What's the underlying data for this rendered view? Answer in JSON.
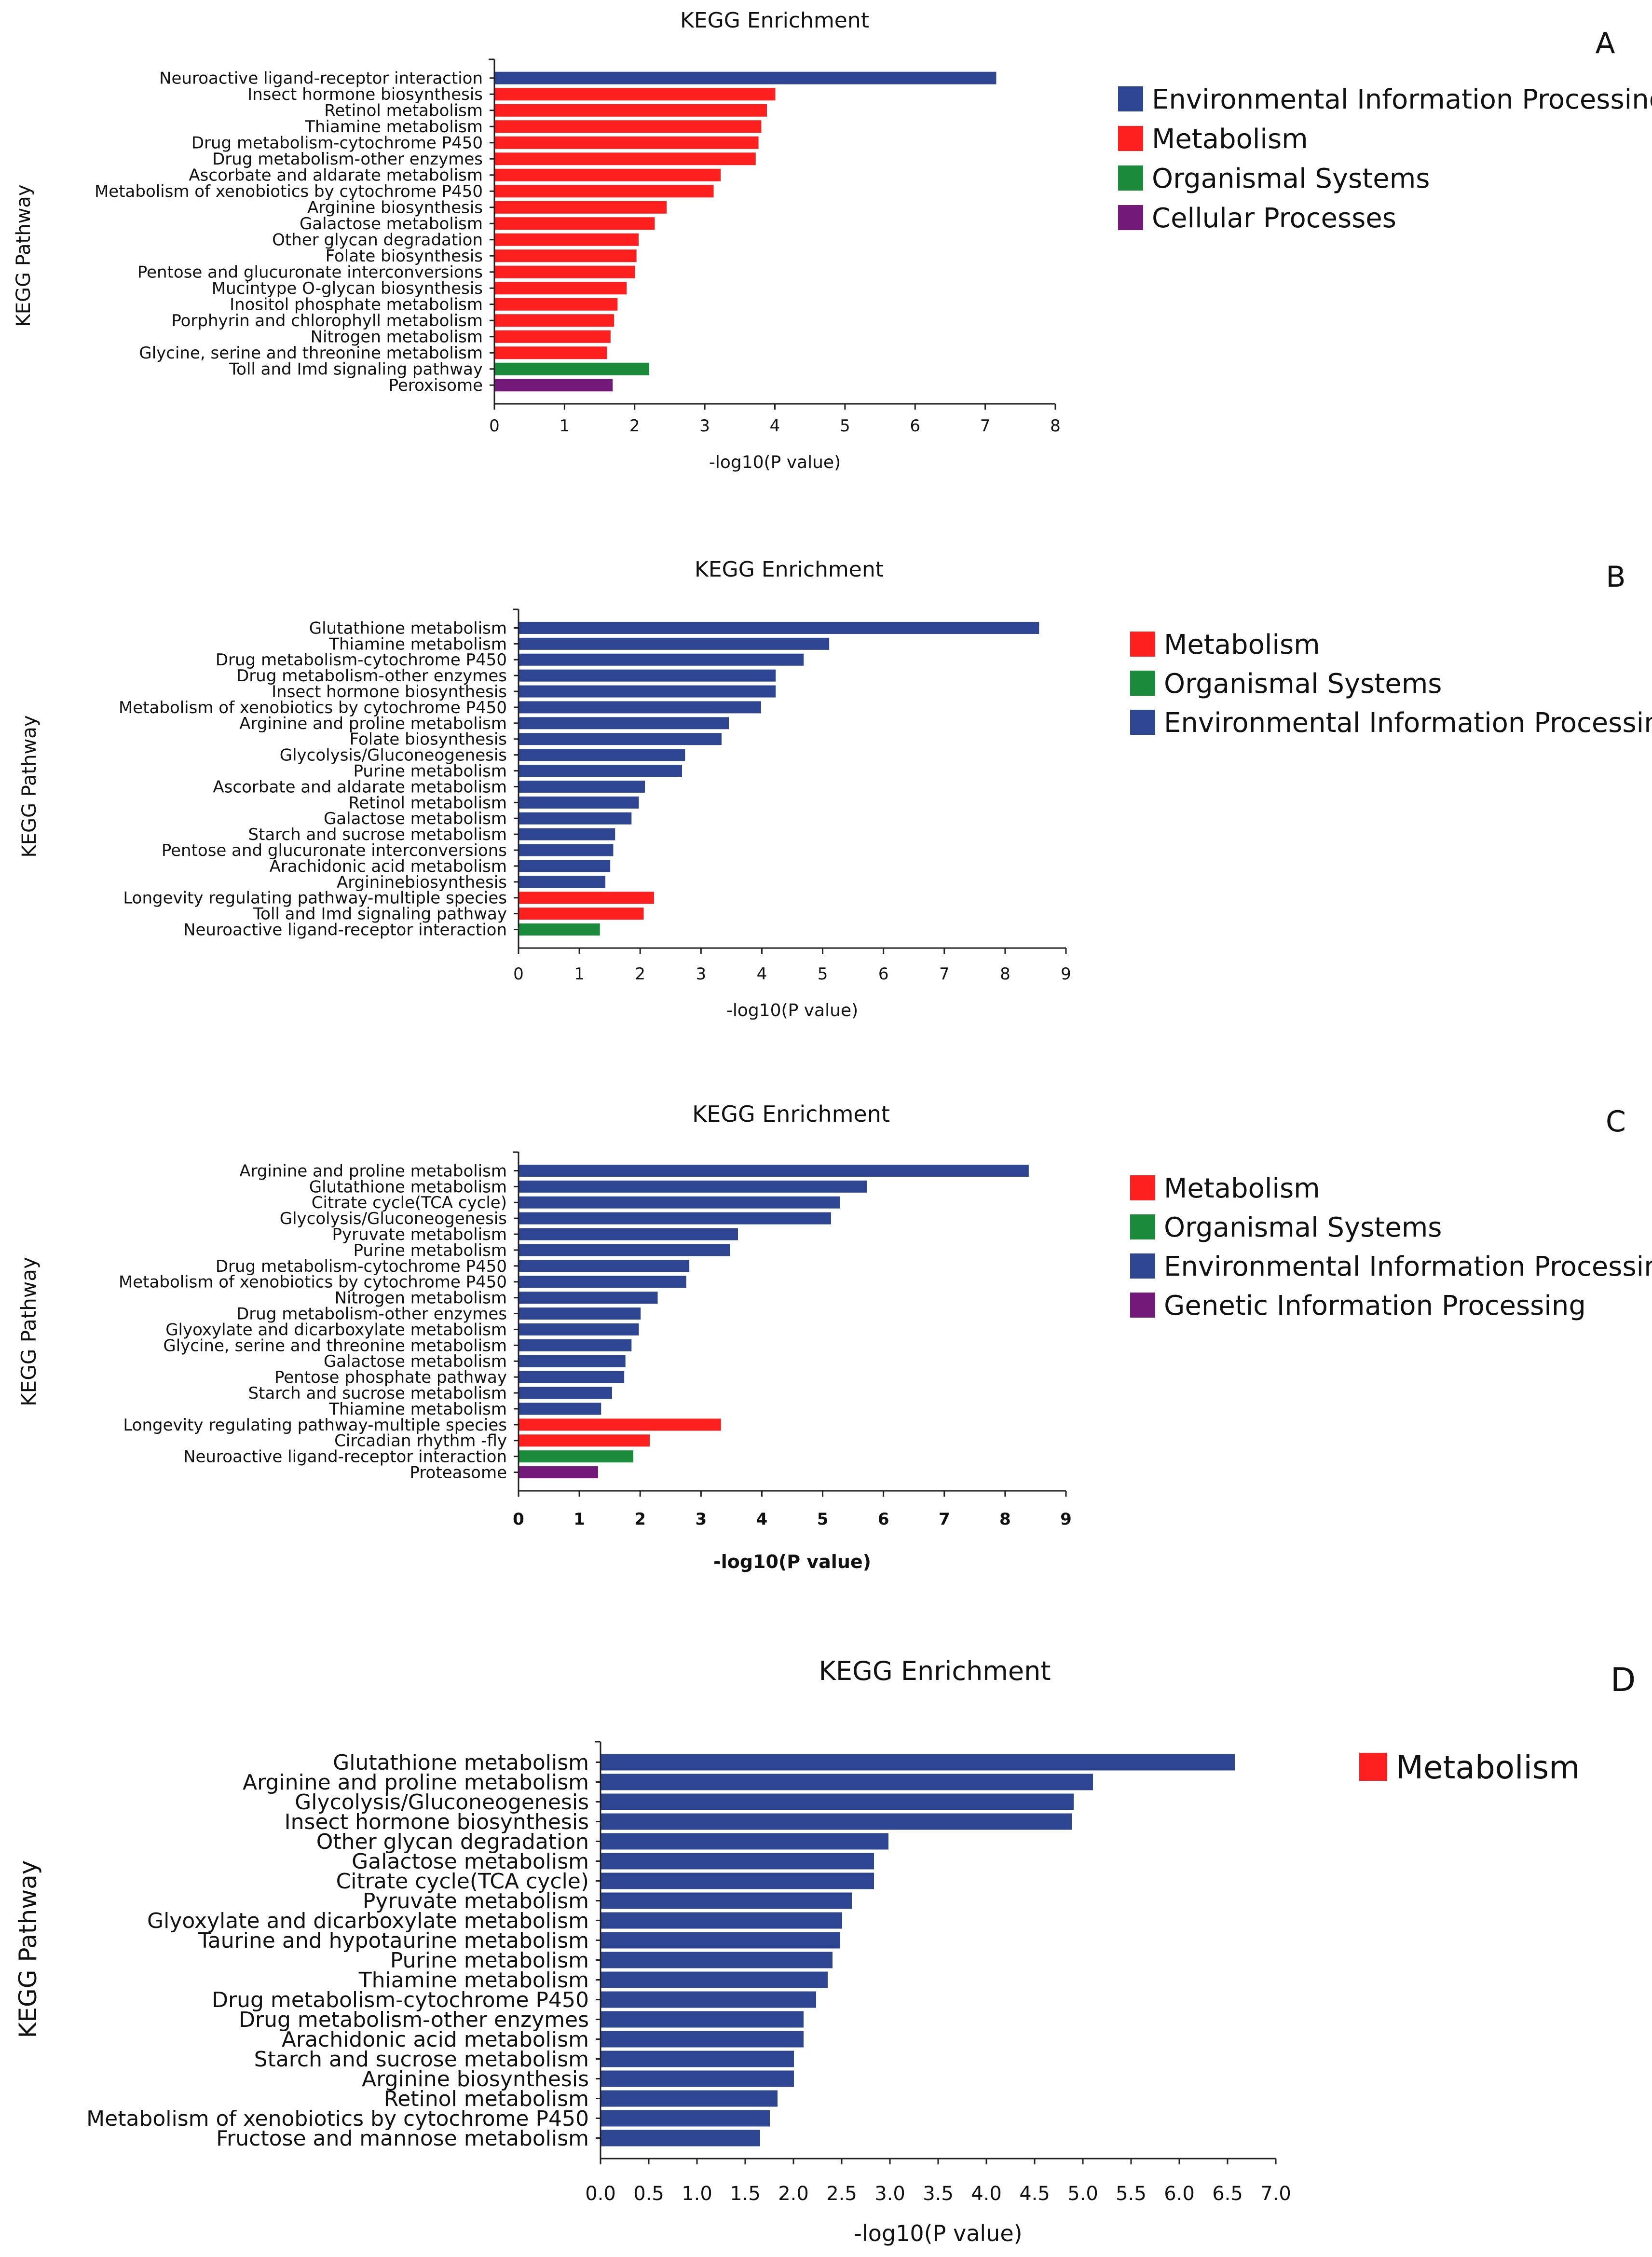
{
  "colors": {
    "Environmental Information Processing": "#2e4592",
    "Metabolism": "#ff1f1f",
    "Organismal Systems": "#1a8c3c",
    "Cellular Processes": "#741a7a",
    "Genetic Information Processing": "#741a7a"
  },
  "chart_data": [
    {
      "type": "bar",
      "orientation": "horizontal",
      "panel": "A",
      "title": "KEGG Enrichment",
      "xlabel": "-log10(P value)",
      "ylabel": "KEGG Pathway",
      "xlim": [
        0,
        8
      ],
      "xticks": [
        "0",
        "1",
        "2",
        "3",
        "4",
        "5",
        "6",
        "7",
        "8"
      ],
      "legend": [
        "Environmental Information Processing",
        "Metabolism",
        "Organismal Systems",
        "Cellular Processes"
      ],
      "categories": [
        "Neuroactive ligand-receptor interaction",
        "Insect hormone biosynthesis",
        "Retinol metabolism",
        "Thiamine metabolism",
        "Drug metabolism-cytochrome P450",
        "Drug metabolism-other enzymes",
        "Ascorbate and aldarate metabolism",
        "Metabolism of xenobiotics by cytochrome P450",
        "Arginine biosynthesis",
        "Galactose metabolism",
        "Other glycan degradation",
        "Folate biosynthesis",
        "Pentose and glucuronate interconversions",
        "Mucintype O-glycan biosynthesis",
        "Inositol phosphate metabolism",
        "Porphyrin and chlorophyll metabolism",
        "Nitrogen metabolism",
        "Glycine, serine and threonine metabolism",
        "Toll and Imd signaling pathway",
        "Peroxisome"
      ],
      "values": [
        7.15,
        4.0,
        3.88,
        3.8,
        3.76,
        3.72,
        3.22,
        3.12,
        2.45,
        2.28,
        2.05,
        2.02,
        2.0,
        1.88,
        1.75,
        1.7,
        1.65,
        1.6,
        2.2,
        1.68
      ],
      "groups": [
        "Environmental Information Processing",
        "Metabolism",
        "Metabolism",
        "Metabolism",
        "Metabolism",
        "Metabolism",
        "Metabolism",
        "Metabolism",
        "Metabolism",
        "Metabolism",
        "Metabolism",
        "Metabolism",
        "Metabolism",
        "Metabolism",
        "Metabolism",
        "Metabolism",
        "Metabolism",
        "Metabolism",
        "Organismal Systems",
        "Cellular Processes"
      ]
    },
    {
      "type": "bar",
      "orientation": "horizontal",
      "panel": "B",
      "title": "KEGG Enrichment",
      "xlabel": "-log10(P value)",
      "ylabel": "KEGG Pathway",
      "xlim": [
        0,
        9
      ],
      "xticks": [
        "0",
        "1",
        "2",
        "3",
        "4",
        "5",
        "6",
        "7",
        "8",
        "9"
      ],
      "legend": [
        "Metabolism",
        "Organismal Systems",
        "Environmental Information Processing"
      ],
      "categories": [
        "Glutathione metabolism",
        "Thiamine metabolism",
        "Drug metabolism-cytochrome P450",
        "Drug metabolism-other enzymes",
        "Insect hormone biosynthesis",
        "Metabolism of xenobiotics by cytochrome P450",
        "Arginine and proline metabolism",
        "Folate biosynthesis",
        "Glycolysis/Gluconeogenesis",
        "Purine metabolism",
        "Ascorbate and aldarate metabolism",
        "Retinol metabolism",
        "Galactose metabolism",
        "Starch and sucrose metabolism",
        "Pentose and glucuronate interconversions",
        "Arachidonic acid metabolism",
        "Argininebiosynthesis",
        "Longevity regulating pathway-multiple species",
        "Toll and Imd signaling pathway",
        "Neuroactive ligand-receptor interaction"
      ],
      "values": [
        8.55,
        5.1,
        4.68,
        4.22,
        4.22,
        3.98,
        3.45,
        3.33,
        2.73,
        2.68,
        2.07,
        1.97,
        1.85,
        1.58,
        1.55,
        1.5,
        1.42,
        2.22,
        2.05,
        1.33
      ],
      "groups": [
        "Environmental Information Processing",
        "Environmental Information Processing",
        "Environmental Information Processing",
        "Environmental Information Processing",
        "Environmental Information Processing",
        "Environmental Information Processing",
        "Environmental Information Processing",
        "Environmental Information Processing",
        "Environmental Information Processing",
        "Environmental Information Processing",
        "Environmental Information Processing",
        "Environmental Information Processing",
        "Environmental Information Processing",
        "Environmental Information Processing",
        "Environmental Information Processing",
        "Environmental Information Processing",
        "Environmental Information Processing",
        "Metabolism",
        "Metabolism",
        "Organismal Systems"
      ]
    },
    {
      "type": "bar",
      "orientation": "horizontal",
      "panel": "C",
      "title": "KEGG Enrichment",
      "xlabel": "-log10(P value)",
      "ylabel": "KEGG Pathway",
      "xlim": [
        0,
        9
      ],
      "xticks": [
        "0",
        "1",
        "2",
        "3",
        "4",
        "5",
        "6",
        "7",
        "8",
        "9"
      ],
      "legend": [
        "Metabolism",
        "Organismal Systems",
        "Environmental Information Processing",
        "Genetic Information Processing"
      ],
      "categories": [
        "Arginine and proline metabolism",
        "Glutathione metabolism",
        "Citrate cycle(TCA cycle)",
        "Glycolysis/Gluconeogenesis",
        "Pyruvate metabolism",
        "Purine metabolism",
        "Drug metabolism-cytochrome P450",
        "Metabolism of xenobiotics by cytochrome P450",
        "Nitrogen metabolism",
        "Drug metabolism-other enzymes",
        "Glyoxylate and dicarboxylate metabolism",
        "Glycine, serine and threonine metabolism",
        "Galactose metabolism",
        "Pentose phosphate pathway",
        "Starch and sucrose metabolism",
        "Thiamine metabolism",
        "Longevity regulating pathway-multiple species",
        "Circadian rhythm -fly",
        "Neuroactive ligand-receptor interaction",
        "Proteasome"
      ],
      "values": [
        8.38,
        5.72,
        5.28,
        5.13,
        3.6,
        3.47,
        2.8,
        2.75,
        2.28,
        2.0,
        1.97,
        1.85,
        1.75,
        1.73,
        1.53,
        1.35,
        3.32,
        2.15,
        1.88,
        1.3
      ],
      "groups": [
        "Environmental Information Processing",
        "Environmental Information Processing",
        "Environmental Information Processing",
        "Environmental Information Processing",
        "Environmental Information Processing",
        "Environmental Information Processing",
        "Environmental Information Processing",
        "Environmental Information Processing",
        "Environmental Information Processing",
        "Environmental Information Processing",
        "Environmental Information Processing",
        "Environmental Information Processing",
        "Environmental Information Processing",
        "Environmental Information Processing",
        "Environmental Information Processing",
        "Environmental Information Processing",
        "Metabolism",
        "Metabolism",
        "Organismal Systems",
        "Genetic Information Processing"
      ]
    },
    {
      "type": "bar",
      "orientation": "horizontal",
      "panel": "D",
      "title": "KEGG Enrichment",
      "xlabel": "-log10(P value)",
      "ylabel": "KEGG Pathway",
      "xlim": [
        0,
        7
      ],
      "xticks": [
        "0.0",
        "0.5",
        "1.0",
        "1.5",
        "2.0",
        "2.5",
        "3.0",
        "3.5",
        "4.0",
        "4.5",
        "5.0",
        "5.5",
        "6.0",
        "6.5",
        "7.0"
      ],
      "legend": [
        "Metabolism"
      ],
      "categories": [
        "Glutathione metabolism",
        "Arginine and proline metabolism",
        "Glycolysis/Gluconeogenesis",
        "Insect hormone biosynthesis",
        "Other glycan degradation",
        "Galactose metabolism",
        "Citrate cycle(TCA cycle)",
        "Pyruvate metabolism",
        "Glyoxylate and dicarboxylate metabolism",
        "Taurine and hypotaurine metabolism",
        "Purine metabolism",
        "Thiamine metabolism",
        "Drug metabolism-cytochrome P450",
        "Drug metabolism-other enzymes",
        "Arachidonic acid metabolism",
        "Starch and sucrose metabolism",
        "Arginine biosynthesis",
        "Retinol metabolism",
        "Metabolism of xenobiotics by cytochrome P450",
        "Fructose and mannose metabolism"
      ],
      "values": [
        6.57,
        5.1,
        4.9,
        4.88,
        2.98,
        2.83,
        2.83,
        2.6,
        2.5,
        2.48,
        2.4,
        2.35,
        2.23,
        2.1,
        2.1,
        2.0,
        2.0,
        1.83,
        1.75,
        1.65
      ],
      "groups": [
        "Environmental Information Processing",
        "Environmental Information Processing",
        "Environmental Information Processing",
        "Environmental Information Processing",
        "Environmental Information Processing",
        "Environmental Information Processing",
        "Environmental Information Processing",
        "Environmental Information Processing",
        "Environmental Information Processing",
        "Environmental Information Processing",
        "Environmental Information Processing",
        "Environmental Information Processing",
        "Environmental Information Processing",
        "Environmental Information Processing",
        "Environmental Information Processing",
        "Environmental Information Processing",
        "Environmental Information Processing",
        "Environmental Information Processing",
        "Environmental Information Processing",
        "Environmental Information Processing"
      ]
    }
  ]
}
